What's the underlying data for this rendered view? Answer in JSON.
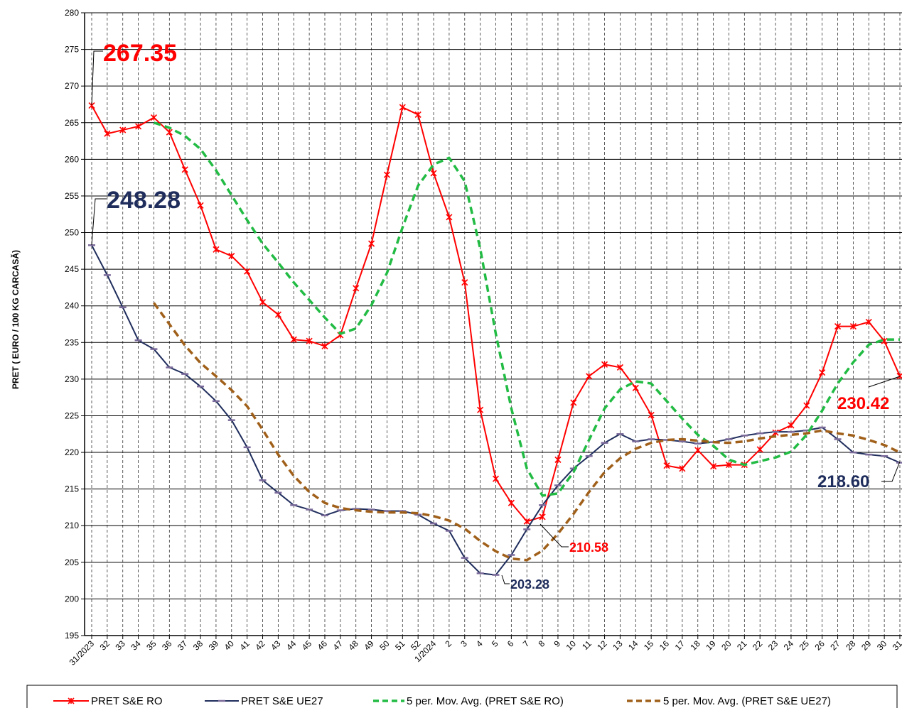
{
  "chart_data": {
    "type": "line",
    "y_label": "PRET ( EURO / 100 KG CARCASĂ)",
    "categories": [
      "31/2023",
      "32",
      "33",
      "34",
      "35",
      "36",
      "37",
      "38",
      "39",
      "40",
      "41",
      "42",
      "43",
      "44",
      "45",
      "46",
      "47",
      "48",
      "49",
      "50",
      "51",
      "52",
      "1/2024",
      "2",
      "3",
      "4",
      "5",
      "6",
      "7",
      "8",
      "9",
      "10",
      "11",
      "12",
      "13",
      "14",
      "15",
      "16",
      "17",
      "18",
      "19",
      "20",
      "21",
      "22",
      "23",
      "24",
      "25",
      "26",
      "27",
      "28",
      "29",
      "30",
      "31"
    ],
    "ylim": [
      195,
      280
    ],
    "yticks": [
      195,
      200,
      205,
      210,
      215,
      220,
      225,
      230,
      235,
      240,
      245,
      250,
      255,
      260,
      265,
      270,
      275,
      280
    ],
    "grid": true,
    "legend": "bottom",
    "series": [
      {
        "name": "PRET S&E RO",
        "color": "#ff0000",
        "marker": "star",
        "dash": false,
        "values": [
          267.35,
          263.5,
          264.0,
          264.5,
          265.7,
          263.7,
          258.6,
          253.7,
          247.7,
          246.8,
          244.7,
          240.5,
          238.8,
          235.4,
          235.2,
          234.5,
          236.0,
          242.4,
          248.5,
          257.9,
          267.1,
          266.1,
          258.1,
          252.1,
          243.2,
          225.8,
          216.4,
          213.1,
          210.58,
          211.2,
          219.0,
          226.8,
          230.4,
          232.0,
          231.6,
          228.8,
          225.1,
          218.2,
          217.8,
          220.3,
          218.1,
          218.3,
          218.3,
          220.4,
          222.7,
          223.7,
          226.4,
          230.9,
          237.2,
          237.2,
          237.8,
          235.2,
          230.42
        ],
        "value_labels": [
          "267.35",
          null,
          null,
          null,
          null,
          null,
          null,
          null,
          null,
          null,
          null,
          null,
          null,
          null,
          null,
          null,
          null,
          null,
          null,
          null,
          null,
          null,
          null,
          null,
          null,
          null,
          null,
          null,
          "210.58",
          null,
          null,
          null,
          null,
          null,
          null,
          null,
          null,
          null,
          null,
          null,
          null,
          null,
          null,
          null,
          null,
          null,
          null,
          null,
          null,
          null,
          null,
          null,
          "230.42"
        ]
      },
      {
        "name": "PRET S&E UE27",
        "color": "#1f2d5c",
        "marker": "dash",
        "dash": false,
        "values": [
          248.28,
          244.2,
          239.8,
          235.3,
          234.1,
          231.6,
          230.7,
          229.0,
          227.0,
          224.4,
          220.7,
          216.2,
          214.5,
          212.8,
          212.2,
          211.4,
          212.1,
          212.3,
          212.2,
          212.0,
          212.0,
          211.5,
          210.3,
          209.3,
          205.6,
          203.5,
          203.28,
          206.0,
          209.5,
          212.8,
          215.5,
          217.8,
          219.5,
          221.3,
          222.5,
          221.5,
          221.8,
          221.7,
          221.5,
          221.2,
          221.4,
          221.8,
          222.3,
          222.6,
          222.8,
          222.8,
          223.0,
          223.4,
          221.8,
          220.0,
          219.7,
          219.5,
          218.6
        ],
        "value_labels": [
          "248.28",
          null,
          null,
          null,
          null,
          null,
          null,
          null,
          null,
          null,
          null,
          null,
          null,
          null,
          null,
          null,
          null,
          null,
          null,
          null,
          null,
          null,
          null,
          null,
          null,
          null,
          "203.28",
          null,
          null,
          null,
          null,
          null,
          null,
          null,
          null,
          null,
          null,
          null,
          null,
          null,
          null,
          null,
          null,
          null,
          null,
          null,
          null,
          null,
          null,
          null,
          null,
          null,
          "218.60"
        ]
      },
      {
        "name": "5 per. Mov. Avg. (PRET S&E RO)",
        "color": "#22bb44",
        "marker": "none",
        "dash": true,
        "values": [
          null,
          null,
          null,
          null,
          265.0,
          264.3,
          263.2,
          261.4,
          258.5,
          255.1,
          251.7,
          248.5,
          245.9,
          243.2,
          240.8,
          238.4,
          236.2,
          236.9,
          240.1,
          244.5,
          250.7,
          256.4,
          259.3,
          260.2,
          257.0,
          247.8,
          236.2,
          226.0,
          217.8,
          214.1,
          214.4,
          217.3,
          221.7,
          226.0,
          228.6,
          229.7,
          229.4,
          227.0,
          224.6,
          222.4,
          220.9,
          219.0,
          218.3,
          218.8,
          219.3,
          220.1,
          222.4,
          225.7,
          229.4,
          232.3,
          234.7,
          235.4,
          235.4
        ]
      },
      {
        "name": "5 per. Mov. Avg. (PRET S&E UE27)",
        "color": "#a0601a",
        "marker": "none",
        "dash": true,
        "values": [
          null,
          null,
          null,
          null,
          240.4,
          237.5,
          234.6,
          232.2,
          230.4,
          228.5,
          226.3,
          223.1,
          219.7,
          216.8,
          214.6,
          213.1,
          212.4,
          212.1,
          211.9,
          211.8,
          211.8,
          211.7,
          211.3,
          210.7,
          209.6,
          207.9,
          206.5,
          205.5,
          205.3,
          206.6,
          208.9,
          211.6,
          214.6,
          217.3,
          219.2,
          220.5,
          221.3,
          221.7,
          221.8,
          221.6,
          221.4,
          221.3,
          221.5,
          221.9,
          222.2,
          222.4,
          222.6,
          223.0,
          222.6,
          222.3,
          221.7,
          221.0,
          220.0
        ]
      }
    ]
  }
}
